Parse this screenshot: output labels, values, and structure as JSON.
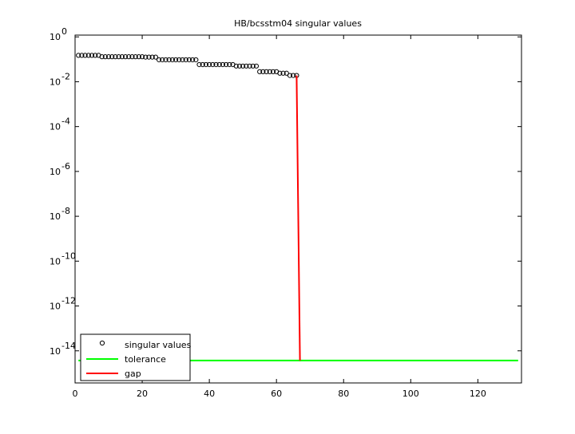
{
  "chart_data": {
    "type": "line",
    "title": "HB/bcsstm04 singular values",
    "log_y": true,
    "xlim": [
      0,
      133
    ],
    "xticks": [
      0,
      20,
      40,
      60,
      80,
      100,
      120
    ],
    "ylim": [
      3.7e-16,
      1.2
    ],
    "yticks": [
      {
        "value": 1,
        "label": "10",
        "exponent": "0"
      },
      {
        "value": 0.01,
        "label": "10",
        "exponent": "-2"
      },
      {
        "value": 0.0001,
        "label": "10",
        "exponent": "-4"
      },
      {
        "value": 1e-06,
        "label": "10",
        "exponent": "-6"
      },
      {
        "value": 1e-08,
        "label": "10",
        "exponent": "-8"
      },
      {
        "value": 1e-10,
        "label": "10",
        "exponent": "-10"
      },
      {
        "value": 1e-12,
        "label": "10",
        "exponent": "-12"
      },
      {
        "value": 1e-14,
        "label": "10",
        "exponent": "-14"
      }
    ],
    "legend": "lower left",
    "series": [
      {
        "name": "singular values",
        "color": "#000000",
        "marker": "circle",
        "x": [
          1,
          2,
          3,
          4,
          5,
          6,
          7,
          8,
          9,
          10,
          11,
          12,
          13,
          14,
          15,
          16,
          17,
          18,
          19,
          20,
          21,
          22,
          23,
          24,
          25,
          26,
          27,
          28,
          29,
          30,
          31,
          32,
          33,
          34,
          35,
          36,
          37,
          38,
          39,
          40,
          41,
          42,
          43,
          44,
          45,
          46,
          47,
          48,
          49,
          50,
          51,
          52,
          53,
          54,
          55,
          56,
          57,
          58,
          59,
          60,
          61,
          62,
          63,
          64,
          65,
          66
        ],
        "values": [
          0.15,
          0.15,
          0.15,
          0.15,
          0.15,
          0.15,
          0.15,
          0.13,
          0.13,
          0.13,
          0.13,
          0.13,
          0.13,
          0.13,
          0.13,
          0.13,
          0.13,
          0.13,
          0.13,
          0.13,
          0.125,
          0.125,
          0.125,
          0.125,
          0.095,
          0.095,
          0.095,
          0.095,
          0.095,
          0.095,
          0.095,
          0.095,
          0.095,
          0.095,
          0.095,
          0.095,
          0.058,
          0.058,
          0.058,
          0.058,
          0.058,
          0.058,
          0.058,
          0.058,
          0.058,
          0.058,
          0.058,
          0.05,
          0.05,
          0.05,
          0.05,
          0.05,
          0.05,
          0.05,
          0.028,
          0.028,
          0.028,
          0.028,
          0.028,
          0.028,
          0.024,
          0.024,
          0.024,
          0.019,
          0.019,
          0.019
        ]
      },
      {
        "name": "tolerance",
        "color": "#00ff00",
        "marker": "line",
        "x": [
          1,
          132
        ],
        "values": [
          3.7e-15,
          3.7e-15
        ]
      },
      {
        "name": "gap",
        "color": "#ff0000",
        "marker": "line",
        "x": [
          66,
          67
        ],
        "values": [
          0.019,
          3.7e-15
        ]
      }
    ]
  }
}
